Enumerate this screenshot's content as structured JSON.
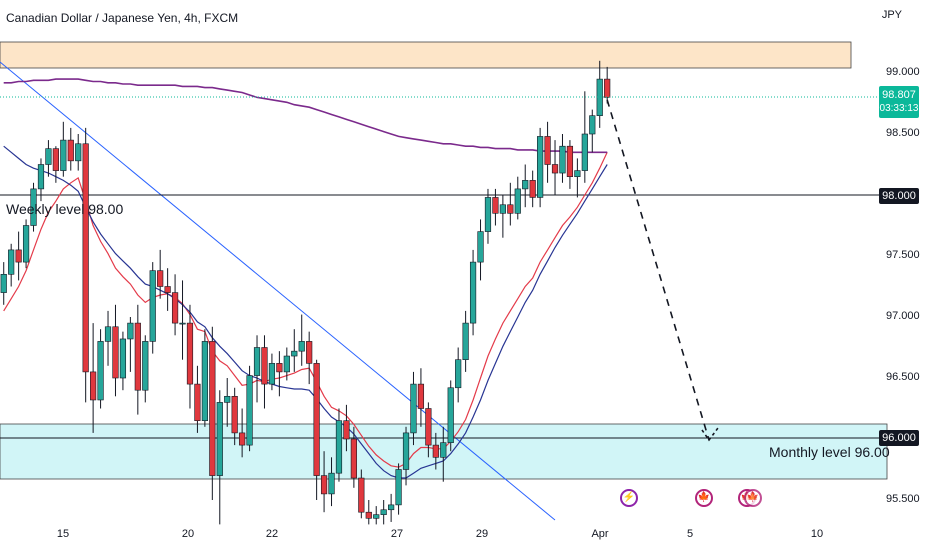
{
  "header": {
    "title": "Canadian Dollar / Japanese Yen, 4h, FXCM",
    "currency": "JPY"
  },
  "price_label": {
    "price": "98.807",
    "timer": "03:33:13"
  },
  "levels": {
    "weekly_text": "Weekly level 98.00",
    "monthly_text": "Monthly level 96.00",
    "weekly_box": "98.000",
    "monthly_box": "96.000"
  },
  "y_ticks": [
    "99.000",
    "98.500",
    "98.000",
    "97.500",
    "97.000",
    "96.500",
    "96.000",
    "95.500"
  ],
  "x_ticks": [
    "15",
    "20",
    "22",
    "27",
    "29",
    "Apr",
    "5",
    "10"
  ],
  "events": [
    "lightning-icon",
    "canada-flag-icon",
    "canada-flag-icon"
  ],
  "chart_data": {
    "type": "candlestick",
    "symbol": "Canadian Dollar / Japanese Yen",
    "timeframe": "4h",
    "source": "FXCM",
    "ylim": [
      95.35,
      99.6
    ],
    "last_price": 98.807,
    "zones": [
      {
        "name": "resistance",
        "from": 99.05,
        "to": 99.25,
        "color": "#fde5c8"
      },
      {
        "name": "support",
        "from": 95.77,
        "to": 96.1,
        "color": "#d1f5f7"
      }
    ],
    "horizontal_levels": [
      98.0,
      96.0
    ],
    "candles": [
      [
        97.2,
        97.45,
        97.1,
        97.35
      ],
      [
        97.35,
        97.6,
        97.25,
        97.55
      ],
      [
        97.55,
        97.7,
        97.3,
        97.45
      ],
      [
        97.45,
        97.8,
        97.4,
        97.75
      ],
      [
        97.75,
        98.1,
        97.7,
        98.05
      ],
      [
        98.05,
        98.3,
        97.95,
        98.25
      ],
      [
        98.25,
        98.45,
        98.15,
        98.38
      ],
      [
        98.38,
        98.4,
        98.1,
        98.2
      ],
      [
        98.2,
        98.6,
        98.15,
        98.45
      ],
      [
        98.45,
        98.55,
        98.2,
        98.28
      ],
      [
        98.28,
        98.5,
        98.2,
        98.42
      ],
      [
        98.42,
        98.55,
        96.3,
        96.55
      ],
      [
        96.55,
        96.95,
        96.05,
        96.32
      ],
      [
        96.32,
        96.9,
        96.25,
        96.8
      ],
      [
        96.8,
        97.05,
        96.6,
        96.92
      ],
      [
        96.92,
        97.1,
        96.35,
        96.5
      ],
      [
        96.5,
        96.88,
        96.4,
        96.82
      ],
      [
        96.82,
        97.0,
        96.55,
        96.95
      ],
      [
        96.95,
        97.1,
        96.2,
        96.4
      ],
      [
        96.4,
        96.85,
        96.3,
        96.8
      ],
      [
        96.8,
        97.45,
        96.7,
        97.38
      ],
      [
        97.38,
        97.55,
        97.15,
        97.25
      ],
      [
        97.25,
        97.4,
        97.05,
        97.2
      ],
      [
        97.2,
        97.35,
        96.85,
        96.95
      ],
      [
        96.95,
        97.3,
        96.65,
        96.95
      ],
      [
        96.95,
        97.1,
        96.25,
        96.45
      ],
      [
        96.45,
        96.6,
        96.05,
        96.15
      ],
      [
        96.15,
        96.9,
        96.1,
        96.8
      ],
      [
        96.8,
        96.92,
        95.5,
        95.7
      ],
      [
        95.7,
        96.4,
        95.3,
        96.3
      ],
      [
        96.3,
        96.5,
        96.1,
        96.35
      ],
      [
        96.35,
        96.42,
        95.95,
        96.05
      ],
      [
        96.05,
        96.25,
        95.85,
        95.95
      ],
      [
        95.95,
        96.6,
        95.9,
        96.52
      ],
      [
        96.52,
        96.85,
        96.3,
        96.75
      ],
      [
        96.75,
        96.85,
        96.25,
        96.45
      ],
      [
        96.45,
        96.7,
        96.4,
        96.62
      ],
      [
        96.62,
        96.72,
        96.35,
        96.55
      ],
      [
        96.55,
        96.75,
        96.48,
        96.68
      ],
      [
        96.68,
        96.9,
        96.55,
        96.72
      ],
      [
        96.72,
        97.02,
        96.6,
        96.8
      ],
      [
        96.8,
        96.88,
        96.45,
        96.62
      ],
      [
        96.62,
        96.65,
        95.5,
        95.7
      ],
      [
        95.7,
        95.9,
        95.4,
        95.55
      ],
      [
        95.55,
        95.85,
        95.45,
        95.72
      ],
      [
        95.72,
        96.25,
        95.65,
        96.15
      ],
      [
        96.15,
        96.28,
        95.9,
        96.0
      ],
      [
        96.0,
        96.1,
        95.6,
        95.68
      ],
      [
        95.68,
        95.75,
        95.35,
        95.4
      ],
      [
        95.4,
        95.5,
        95.3,
        95.35
      ],
      [
        95.35,
        95.45,
        95.3,
        95.38
      ],
      [
        95.38,
        95.5,
        95.3,
        95.42
      ],
      [
        95.42,
        95.55,
        95.32,
        95.46
      ],
      [
        95.46,
        95.8,
        95.38,
        95.75
      ],
      [
        95.75,
        96.1,
        95.62,
        96.05
      ],
      [
        96.05,
        96.55,
        95.95,
        96.45
      ],
      [
        96.45,
        96.58,
        96.1,
        96.25
      ],
      [
        96.25,
        96.3,
        95.85,
        95.95
      ],
      [
        95.95,
        96.05,
        95.75,
        95.85
      ],
      [
        95.85,
        96.1,
        95.65,
        95.97
      ],
      [
        95.97,
        96.48,
        95.9,
        96.42
      ],
      [
        96.42,
        96.75,
        96.3,
        96.65
      ],
      [
        96.65,
        97.05,
        96.55,
        96.95
      ],
      [
        96.95,
        97.55,
        96.85,
        97.45
      ],
      [
        97.45,
        97.8,
        97.3,
        97.7
      ],
      [
        97.7,
        98.05,
        97.6,
        97.98
      ],
      [
        97.98,
        98.05,
        97.75,
        97.85
      ],
      [
        97.85,
        98.0,
        97.65,
        97.92
      ],
      [
        97.92,
        98.1,
        97.75,
        97.85
      ],
      [
        97.85,
        98.15,
        97.8,
        98.05
      ],
      [
        98.05,
        98.25,
        97.9,
        98.12
      ],
      [
        98.12,
        98.2,
        97.9,
        97.98
      ],
      [
        97.98,
        98.55,
        97.9,
        98.48
      ],
      [
        98.48,
        98.6,
        98.1,
        98.25
      ],
      [
        98.25,
        98.45,
        98.0,
        98.18
      ],
      [
        98.18,
        98.5,
        98.1,
        98.4
      ],
      [
        98.4,
        98.45,
        98.05,
        98.15
      ],
      [
        98.15,
        98.3,
        97.98,
        98.2
      ],
      [
        98.2,
        98.85,
        98.1,
        98.5
      ],
      [
        98.5,
        98.7,
        98.35,
        98.65
      ],
      [
        98.65,
        99.1,
        98.55,
        98.95
      ],
      [
        98.95,
        99.05,
        98.75,
        98.8
      ]
    ],
    "series": [
      {
        "name": "EMA fast",
        "color": "#e43b4a",
        "values": [
          97.05,
          97.15,
          97.25,
          97.38,
          97.55,
          97.72,
          97.86,
          97.95,
          98.05,
          98.1,
          98.14,
          97.95,
          97.75,
          97.62,
          97.52,
          97.4,
          97.33,
          97.27,
          97.18,
          97.12,
          97.16,
          97.18,
          97.19,
          97.16,
          97.11,
          97.02,
          96.9,
          96.88,
          96.72,
          96.64,
          96.6,
          96.52,
          96.44,
          96.45,
          96.48,
          96.47,
          96.49,
          96.5,
          96.52,
          96.54,
          96.57,
          96.58,
          96.47,
          96.35,
          96.26,
          96.23,
          96.19,
          96.12,
          96.03,
          95.94,
          95.87,
          95.82,
          95.78,
          95.77,
          95.8,
          95.88,
          95.93,
          95.93,
          95.92,
          95.92,
          95.98,
          96.06,
          96.16,
          96.32,
          96.5,
          96.68,
          96.82,
          96.95,
          97.05,
          97.15,
          97.25,
          97.32,
          97.45,
          97.55,
          97.65,
          97.75,
          97.82,
          97.9,
          98.0,
          98.1,
          98.22,
          98.35
        ]
      },
      {
        "name": "EMA slow",
        "color": "#283593",
        "values": [
          98.4,
          98.35,
          98.3,
          98.25,
          98.22,
          98.2,
          98.18,
          98.15,
          98.12,
          98.08,
          98.03,
          97.9,
          97.78,
          97.68,
          97.6,
          97.52,
          97.46,
          97.4,
          97.33,
          97.27,
          97.25,
          97.22,
          97.19,
          97.15,
          97.1,
          97.04,
          96.96,
          96.92,
          96.83,
          96.76,
          96.7,
          96.63,
          96.56,
          96.52,
          96.5,
          96.47,
          96.45,
          96.43,
          96.42,
          96.41,
          96.41,
          96.4,
          96.33,
          96.25,
          96.18,
          96.14,
          96.1,
          96.04,
          95.96,
          95.88,
          95.8,
          95.74,
          95.7,
          95.68,
          95.68,
          95.72,
          95.76,
          95.78,
          95.8,
          95.82,
          95.88,
          95.96,
          96.05,
          96.18,
          96.32,
          96.48,
          96.62,
          96.76,
          96.88,
          97.0,
          97.12,
          97.22,
          97.35,
          97.46,
          97.57,
          97.67,
          97.76,
          97.85,
          97.95,
          98.05,
          98.15,
          98.25
        ]
      },
      {
        "name": "MA",
        "color": "#7b2a8c",
        "values": [
          98.92,
          98.92,
          98.93,
          98.93,
          98.94,
          98.94,
          98.94,
          98.95,
          98.95,
          98.95,
          98.95,
          98.94,
          98.93,
          98.93,
          98.92,
          98.92,
          98.91,
          98.91,
          98.9,
          98.9,
          98.9,
          98.9,
          98.9,
          98.9,
          98.89,
          98.89,
          98.89,
          98.88,
          98.88,
          98.87,
          98.86,
          98.85,
          98.84,
          98.82,
          98.8,
          98.79,
          98.78,
          98.77,
          98.76,
          98.74,
          98.73,
          98.72,
          98.7,
          98.68,
          98.66,
          98.64,
          98.62,
          98.6,
          98.58,
          98.56,
          98.54,
          98.52,
          98.5,
          98.48,
          98.47,
          98.46,
          98.45,
          98.44,
          98.43,
          98.42,
          98.42,
          98.41,
          98.4,
          98.4,
          98.39,
          98.39,
          98.38,
          98.38,
          98.38,
          98.37,
          98.37,
          98.37,
          98.36,
          98.36,
          98.36,
          98.36,
          98.35,
          98.35,
          98.35,
          98.35,
          98.35,
          98.35
        ]
      }
    ],
    "projection": [
      [
        98.8,
        0
      ],
      [
        96.0,
        22
      ],
      [
        96.15,
        23
      ]
    ]
  }
}
